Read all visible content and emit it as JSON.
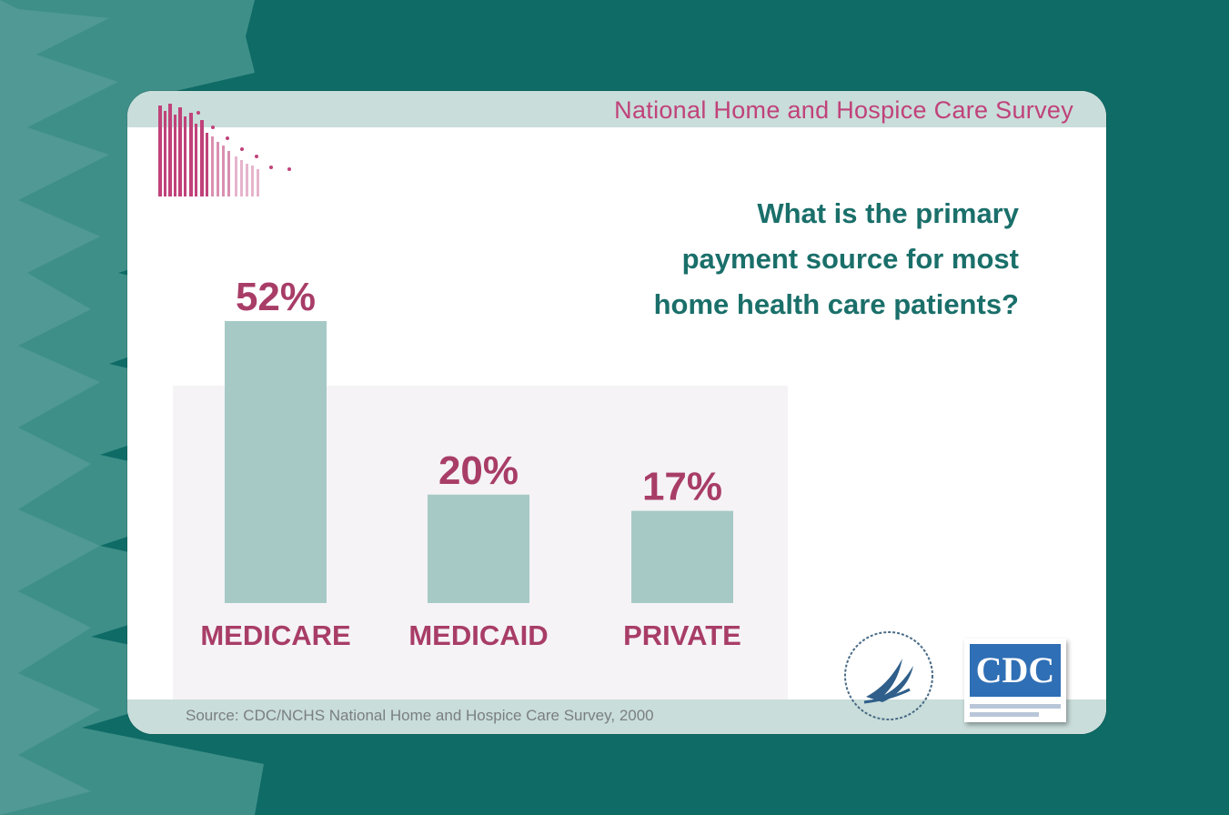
{
  "header": {
    "title": "National Home and Hospice Care Survey"
  },
  "question": {
    "lines": [
      "What is the primary",
      "payment source for most",
      "home health care patients?"
    ]
  },
  "chart_data": {
    "type": "bar",
    "categories": [
      "MEDICARE",
      "MEDICAID",
      "PRIVATE"
    ],
    "values": [
      52,
      20,
      17
    ],
    "value_labels": [
      "52%",
      "20%",
      "17%"
    ],
    "unit": "%",
    "title": "",
    "xlabel": "",
    "ylabel": "",
    "ylim": [
      0,
      52
    ],
    "grid": false,
    "legend": "none",
    "colors": {
      "bar": "#a6c9c6",
      "label": "#a83d67"
    }
  },
  "footer": {
    "source": "Source: CDC/NCHS National Home and Hospice Care Survey, 2000"
  },
  "logos": {
    "cdc": "CDC",
    "hhs": "hhs-eagle-seal-icon",
    "survey": "survey-logo-icon"
  },
  "colors": {
    "background": "#0f6b66",
    "accent_teal": "#1a6f6a",
    "accent_pink": "#c0427a",
    "band": "#c9ddda"
  }
}
